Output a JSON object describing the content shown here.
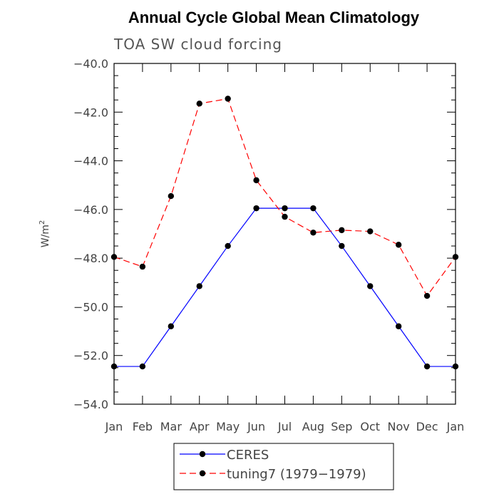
{
  "chart_data": {
    "type": "line",
    "title": "Annual Cycle Global Mean Climatology",
    "subtitle": "TOA SW cloud forcing",
    "ylabel": "W/m",
    "ylabel_sup": "2",
    "xlabel": "",
    "categories": [
      "Jan",
      "Feb",
      "Mar",
      "Apr",
      "May",
      "Jun",
      "Jul",
      "Aug",
      "Sep",
      "Oct",
      "Nov",
      "Dec",
      "Jan"
    ],
    "ylim": [
      -54.0,
      -40.0
    ],
    "yticks": [
      -54.0,
      -52.0,
      -50.0,
      -48.0,
      -46.0,
      -44.0,
      -42.0,
      -40.0
    ],
    "ytick_labels": [
      "−54.0",
      "−52.0",
      "−50.0",
      "−48.0",
      "−46.0",
      "−44.0",
      "−42.0",
      "−40.0"
    ],
    "series": [
      {
        "name": "CERES",
        "color": "#0000ff",
        "dash": "solid",
        "values": [
          -52.45,
          -52.45,
          -50.8,
          -49.15,
          -47.5,
          -45.95,
          -45.95,
          -45.95,
          -47.5,
          -49.15,
          -50.8,
          -52.45,
          -52.45
        ]
      },
      {
        "name": "tuning7 (1979−1979)",
        "color": "#ff0000",
        "dash": "dashed",
        "values": [
          -47.95,
          -48.35,
          -45.45,
          -41.65,
          -41.45,
          -44.8,
          -46.3,
          -46.95,
          -46.85,
          -46.9,
          -47.45,
          -49.55,
          -47.95
        ]
      }
    ],
    "legend_position": "bottom"
  }
}
